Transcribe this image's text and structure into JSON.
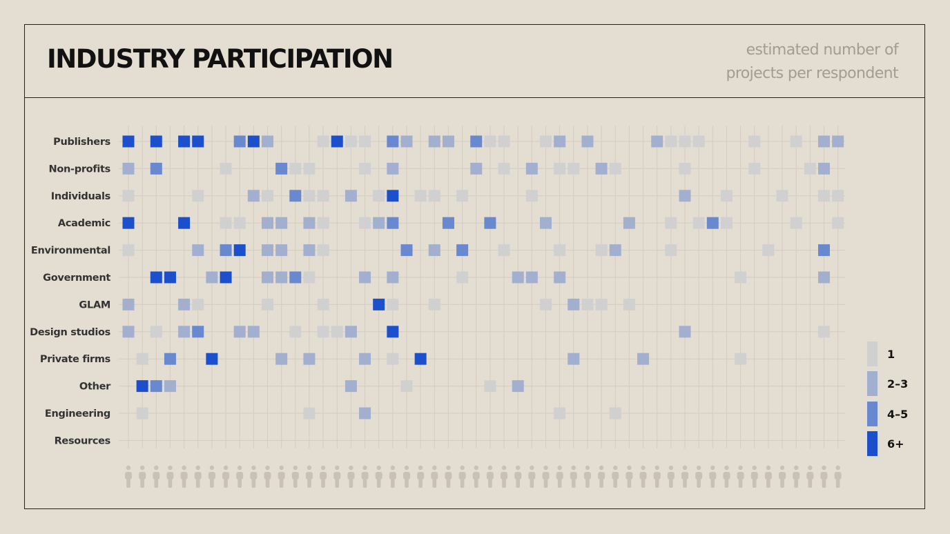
{
  "header": {
    "title": "INDUSTRY PARTICIPATION",
    "subtitle_line1": "estimated number of",
    "subtitle_line2": "projects per respondent"
  },
  "colors": {
    "background": "#e4ddd1",
    "grid": "#d3ccc0",
    "person_icon": "#c9c1b4",
    "level_1": "#d1d0d1",
    "level_2_3": "#a3afcf",
    "level_4_5": "#6888d0",
    "level_6_plus": "#1b4fcc"
  },
  "chart_data": {
    "type": "heatmap",
    "title": "INDUSTRY PARTICIPATION",
    "subtitle": "estimated number of projects per respondent",
    "respondent_count": 52,
    "categories": [
      "Publishers",
      "Non-profits",
      "Individuals",
      "Academic",
      "Environmental",
      "Government",
      "GLAM",
      "Design studios",
      "Private firms",
      "Other",
      "Engineering",
      "Resources"
    ],
    "legend": [
      {
        "level": 1,
        "label": "1"
      },
      {
        "level": 2,
        "label": "2–3"
      },
      {
        "level": 3,
        "label": "4–5"
      },
      {
        "level": 4,
        "label": "6+"
      }
    ],
    "rows": [
      {
        "category": "Publishers",
        "cells": [
          [
            0,
            4
          ],
          [
            2,
            4
          ],
          [
            4,
            4
          ],
          [
            5,
            4
          ],
          [
            8,
            3
          ],
          [
            9,
            4
          ],
          [
            10,
            2
          ],
          [
            14,
            1
          ],
          [
            15,
            4
          ],
          [
            16,
            1
          ],
          [
            17,
            1
          ],
          [
            19,
            3
          ],
          [
            20,
            2
          ],
          [
            22,
            2
          ],
          [
            23,
            2
          ],
          [
            25,
            3
          ],
          [
            26,
            1
          ],
          [
            27,
            1
          ],
          [
            30,
            1
          ],
          [
            31,
            2
          ],
          [
            33,
            2
          ],
          [
            38,
            2
          ],
          [
            39,
            1
          ],
          [
            40,
            1
          ],
          [
            41,
            1
          ],
          [
            45,
            1
          ],
          [
            48,
            1
          ],
          [
            50,
            2
          ],
          [
            51,
            2
          ]
        ]
      },
      {
        "category": "Non-profits",
        "cells": [
          [
            0,
            2
          ],
          [
            2,
            3
          ],
          [
            7,
            1
          ],
          [
            11,
            3
          ],
          [
            12,
            1
          ],
          [
            13,
            1
          ],
          [
            17,
            1
          ],
          [
            19,
            2
          ],
          [
            25,
            2
          ],
          [
            27,
            1
          ],
          [
            29,
            2
          ],
          [
            31,
            1
          ],
          [
            32,
            1
          ],
          [
            34,
            2
          ],
          [
            35,
            1
          ],
          [
            40,
            1
          ],
          [
            45,
            1
          ],
          [
            49,
            1
          ],
          [
            50,
            2
          ]
        ]
      },
      {
        "category": "Individuals",
        "cells": [
          [
            0,
            1
          ],
          [
            5,
            1
          ],
          [
            9,
            2
          ],
          [
            10,
            1
          ],
          [
            12,
            3
          ],
          [
            13,
            1
          ],
          [
            14,
            1
          ],
          [
            16,
            2
          ],
          [
            18,
            1
          ],
          [
            19,
            4
          ],
          [
            21,
            1
          ],
          [
            22,
            1
          ],
          [
            24,
            1
          ],
          [
            29,
            1
          ],
          [
            40,
            2
          ],
          [
            43,
            1
          ],
          [
            47,
            1
          ],
          [
            50,
            1
          ],
          [
            51,
            1
          ]
        ]
      },
      {
        "category": "Academic",
        "cells": [
          [
            0,
            4
          ],
          [
            4,
            4
          ],
          [
            7,
            1
          ],
          [
            8,
            1
          ],
          [
            10,
            2
          ],
          [
            11,
            2
          ],
          [
            13,
            2
          ],
          [
            14,
            1
          ],
          [
            17,
            1
          ],
          [
            18,
            2
          ],
          [
            19,
            3
          ],
          [
            23,
            3
          ],
          [
            26,
            3
          ],
          [
            30,
            2
          ],
          [
            36,
            2
          ],
          [
            39,
            1
          ],
          [
            41,
            1
          ],
          [
            42,
            3
          ],
          [
            43,
            1
          ],
          [
            48,
            1
          ],
          [
            51,
            1
          ]
        ]
      },
      {
        "category": "Environmental",
        "cells": [
          [
            0,
            1
          ],
          [
            5,
            2
          ],
          [
            7,
            3
          ],
          [
            8,
            4
          ],
          [
            10,
            2
          ],
          [
            11,
            2
          ],
          [
            13,
            2
          ],
          [
            14,
            1
          ],
          [
            20,
            3
          ],
          [
            22,
            2
          ],
          [
            24,
            3
          ],
          [
            27,
            1
          ],
          [
            31,
            1
          ],
          [
            34,
            1
          ],
          [
            35,
            2
          ],
          [
            39,
            1
          ],
          [
            46,
            1
          ],
          [
            50,
            3
          ]
        ]
      },
      {
        "category": "Government",
        "cells": [
          [
            2,
            4
          ],
          [
            3,
            4
          ],
          [
            6,
            2
          ],
          [
            7,
            4
          ],
          [
            10,
            2
          ],
          [
            11,
            2
          ],
          [
            12,
            3
          ],
          [
            13,
            1
          ],
          [
            17,
            2
          ],
          [
            19,
            2
          ],
          [
            24,
            1
          ],
          [
            28,
            2
          ],
          [
            29,
            2
          ],
          [
            31,
            2
          ],
          [
            44,
            1
          ],
          [
            50,
            2
          ]
        ]
      },
      {
        "category": "GLAM",
        "cells": [
          [
            0,
            2
          ],
          [
            4,
            2
          ],
          [
            5,
            1
          ],
          [
            10,
            1
          ],
          [
            14,
            1
          ],
          [
            18,
            4
          ],
          [
            19,
            1
          ],
          [
            22,
            1
          ],
          [
            30,
            1
          ],
          [
            32,
            2
          ],
          [
            33,
            1
          ],
          [
            34,
            1
          ],
          [
            36,
            1
          ]
        ]
      },
      {
        "category": "Design studios",
        "cells": [
          [
            0,
            2
          ],
          [
            2,
            1
          ],
          [
            4,
            2
          ],
          [
            5,
            3
          ],
          [
            8,
            2
          ],
          [
            9,
            2
          ],
          [
            12,
            1
          ],
          [
            14,
            1
          ],
          [
            15,
            1
          ],
          [
            16,
            2
          ],
          [
            19,
            4
          ],
          [
            40,
            2
          ],
          [
            50,
            1
          ]
        ]
      },
      {
        "category": "Private firms",
        "cells": [
          [
            1,
            1
          ],
          [
            3,
            3
          ],
          [
            6,
            4
          ],
          [
            11,
            2
          ],
          [
            13,
            2
          ],
          [
            17,
            2
          ],
          [
            19,
            1
          ],
          [
            21,
            4
          ],
          [
            32,
            2
          ],
          [
            37,
            2
          ],
          [
            44,
            1
          ]
        ]
      },
      {
        "category": "Other",
        "cells": [
          [
            1,
            4
          ],
          [
            2,
            3
          ],
          [
            3,
            2
          ],
          [
            16,
            2
          ],
          [
            20,
            1
          ],
          [
            26,
            1
          ],
          [
            28,
            2
          ]
        ]
      },
      {
        "category": "Engineering",
        "cells": [
          [
            1,
            1
          ],
          [
            13,
            1
          ],
          [
            17,
            2
          ],
          [
            31,
            1
          ],
          [
            35,
            1
          ]
        ]
      },
      {
        "category": "Resources",
        "cells": []
      }
    ],
    "grid": true,
    "legend_position": "bottom-right"
  }
}
